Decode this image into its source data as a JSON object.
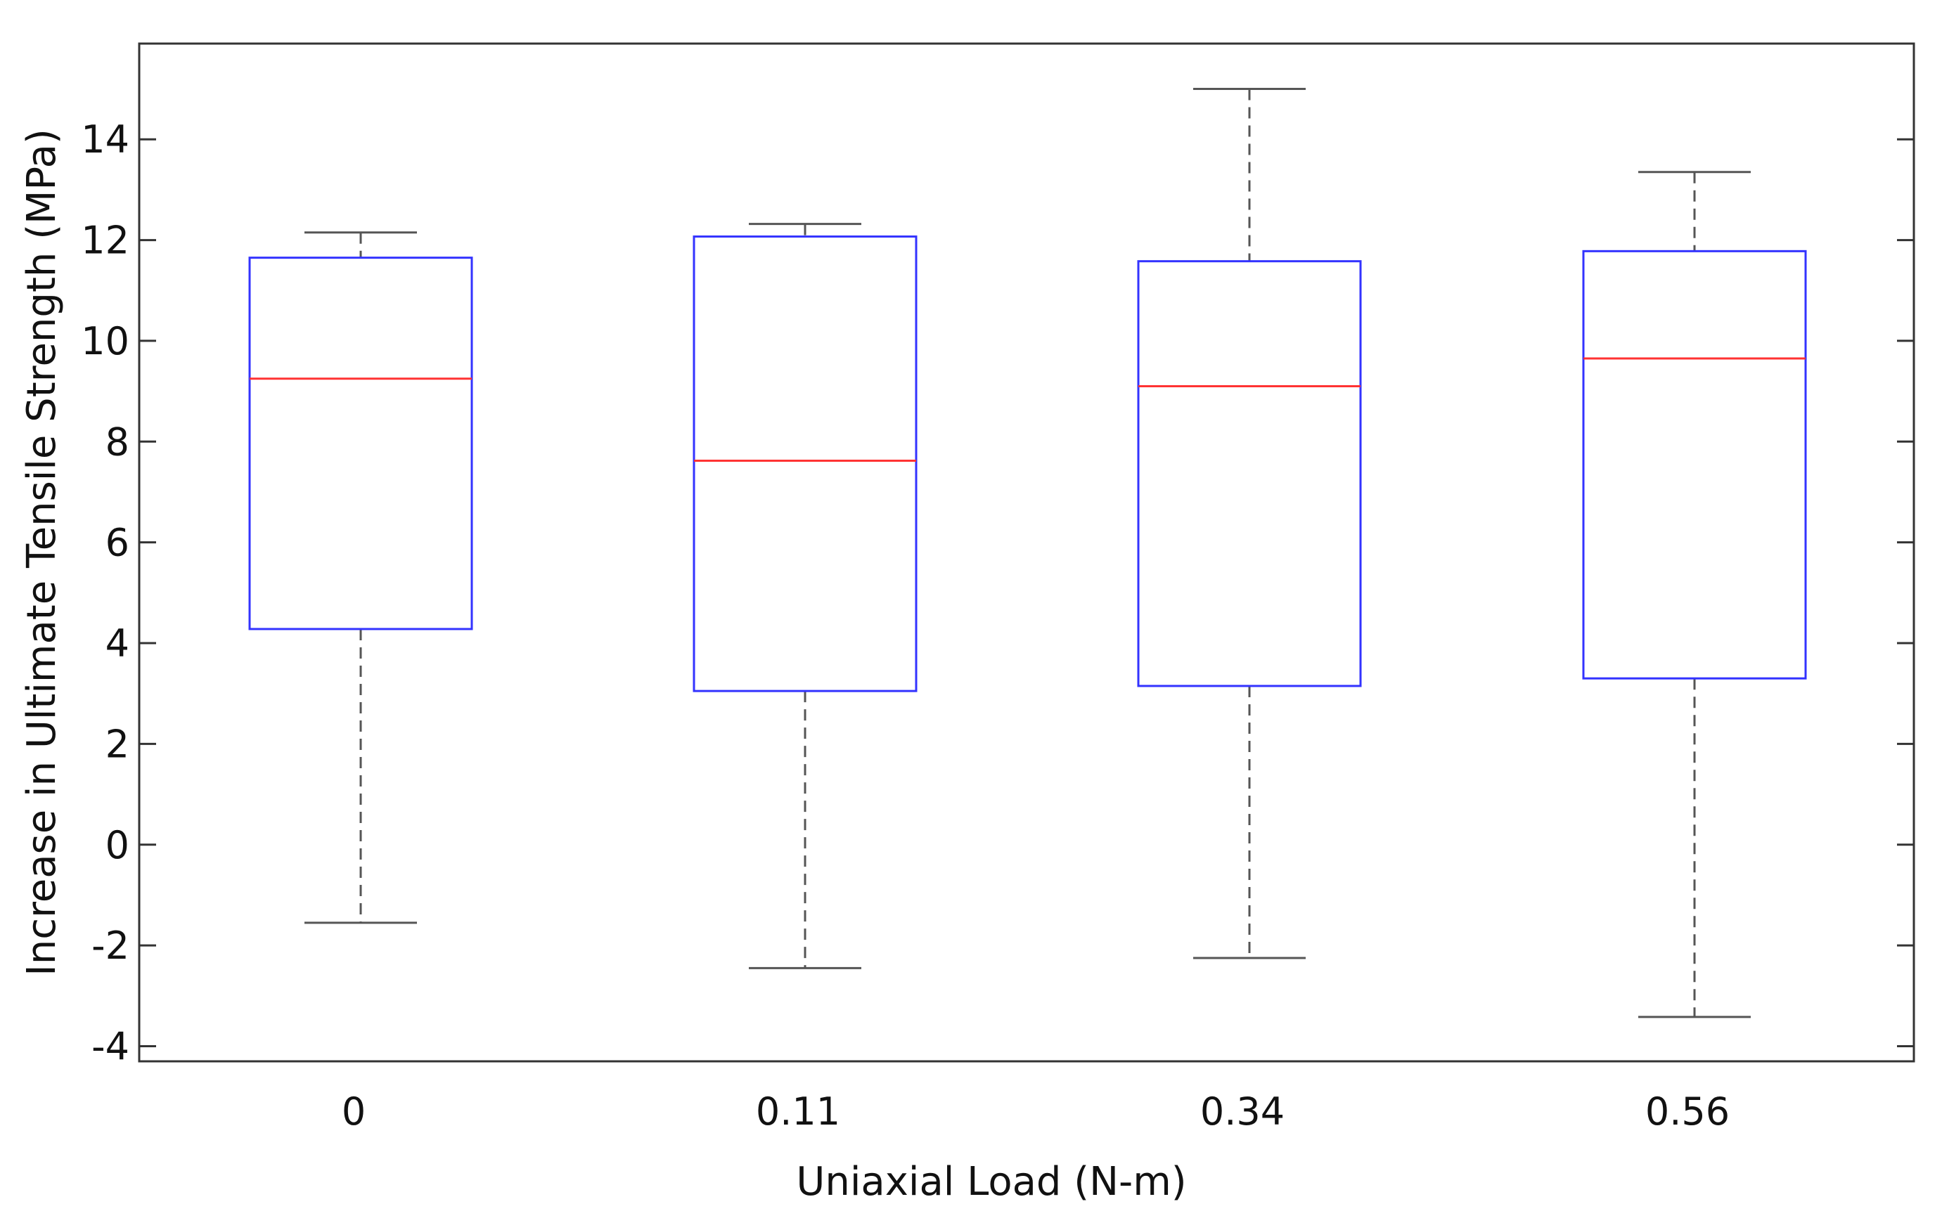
{
  "chart_data": {
    "type": "boxplot",
    "title": "",
    "xlabel": "Uniaxial Load (N-m)",
    "ylabel": "Increase in Ultimate Tensile Strength (MPa)",
    "ylim": [
      -4.3,
      15.9
    ],
    "yticks": [
      -4,
      -2,
      0,
      2,
      4,
      6,
      8,
      10,
      12,
      14
    ],
    "ytick_labels": [
      "-4",
      "-2",
      "0",
      "2",
      "4",
      "6",
      "8",
      "10",
      "12",
      "14"
    ],
    "categories": [
      "0",
      "0.11",
      "0.34",
      "0.56"
    ],
    "boxes": [
      {
        "category": "0",
        "whisker_low": -1.55,
        "q1": 4.28,
        "median": 9.25,
        "q3": 11.65,
        "whisker_high": 12.15
      },
      {
        "category": "0.11",
        "whisker_low": -2.45,
        "q1": 3.05,
        "median": 7.62,
        "q3": 12.07,
        "whisker_high": 12.32
      },
      {
        "category": "0.34",
        "whisker_low": -2.25,
        "q1": 3.15,
        "median": 9.1,
        "q3": 11.58,
        "whisker_high": 15.0
      },
      {
        "category": "0.56",
        "whisker_low": -3.42,
        "q1": 3.3,
        "median": 9.65,
        "q3": 11.78,
        "whisker_high": 13.35
      }
    ],
    "colors": {
      "box": "#3333ff",
      "median": "#ff3333",
      "whisker": "#555555",
      "axis": "#333333"
    },
    "grid": false,
    "legend": "none"
  }
}
